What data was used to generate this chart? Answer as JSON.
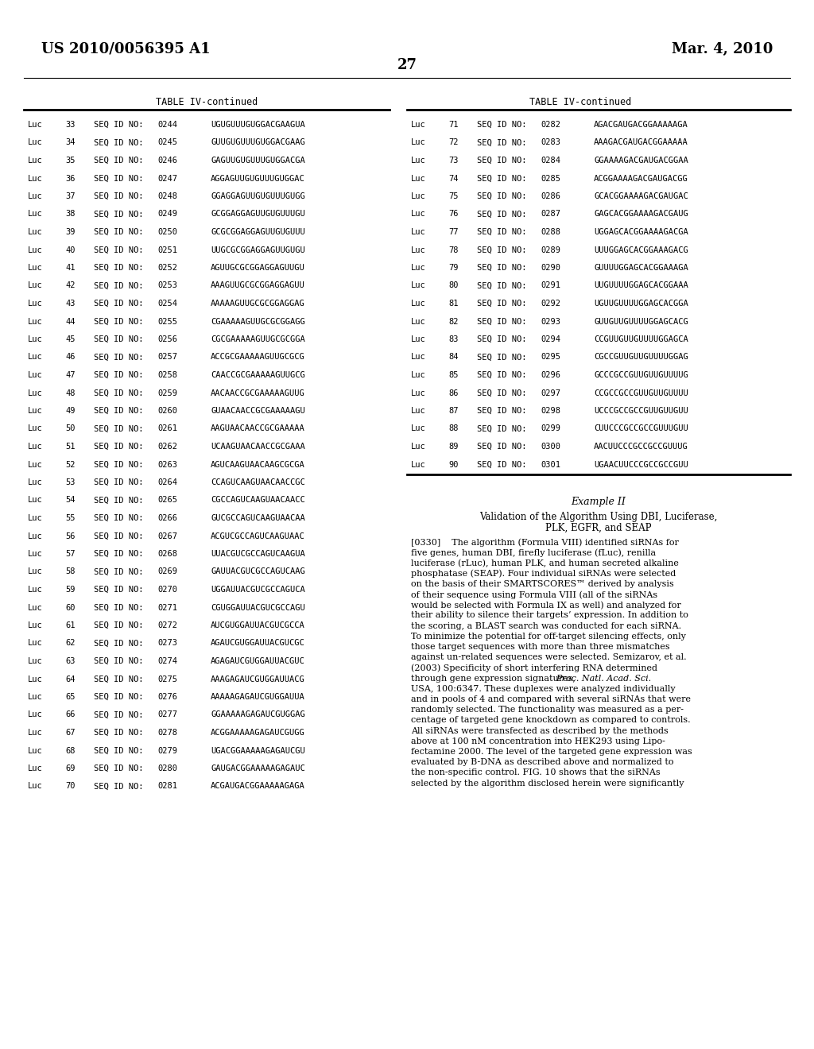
{
  "page_number": "27",
  "patent_left": "US 2010/0056395 A1",
  "patent_right": "Mar. 4, 2010",
  "table_title": "TABLE IV-continued",
  "left_table": {
    "rows": [
      [
        "Luc",
        "33",
        "SEQ ID NO:",
        "0244",
        "UGUGUUUGUGGACGAAGUA"
      ],
      [
        "Luc",
        "34",
        "SEQ ID NO:",
        "0245",
        "GUUGUGUUUGUGGACGAAG"
      ],
      [
        "Luc",
        "35",
        "SEQ ID NO:",
        "0246",
        "GAGUUGUGUUUGUGGACGA"
      ],
      [
        "Luc",
        "36",
        "SEQ ID NO:",
        "0247",
        "AGGAGUUGUGUUUGUGGAC"
      ],
      [
        "Luc",
        "37",
        "SEQ ID NO:",
        "0248",
        "GGAGGAGUUGUGUUUGUGG"
      ],
      [
        "Luc",
        "38",
        "SEQ ID NO:",
        "0249",
        "GCGGAGGAGUUGUGUUUGU"
      ],
      [
        "Luc",
        "39",
        "SEQ ID NO:",
        "0250",
        "GCGCGGAGGAGUUGUGUUU"
      ],
      [
        "Luc",
        "40",
        "SEQ ID NO:",
        "0251",
        "UUGCGCGGAGGAGUUGUGU"
      ],
      [
        "Luc",
        "41",
        "SEQ ID NO:",
        "0252",
        "AGUUGCGCGGAGGAGUUGU"
      ],
      [
        "Luc",
        "42",
        "SEQ ID NO:",
        "0253",
        "AAAGUUGCGCGGAGGAGUU"
      ],
      [
        "Luc",
        "43",
        "SEQ ID NO:",
        "0254",
        "AAAAAGUUGCGCGGAGGAG"
      ],
      [
        "Luc",
        "44",
        "SEQ ID NO:",
        "0255",
        "CGAAAAAGUUGCGCGGAGG"
      ],
      [
        "Luc",
        "45",
        "SEQ ID NO:",
        "0256",
        "CGCGAAAAAGUUGCGCGGA"
      ],
      [
        "Luc",
        "46",
        "SEQ ID NO:",
        "0257",
        "ACCGCGAAAAAGUUGCGCG"
      ],
      [
        "Luc",
        "47",
        "SEQ ID NO:",
        "0258",
        "CAACCGCGAAAAAGUUGCG"
      ],
      [
        "Luc",
        "48",
        "SEQ ID NO:",
        "0259",
        "AACAACCGCGAAAAAGUUG"
      ],
      [
        "Luc",
        "49",
        "SEQ ID NO:",
        "0260",
        "GUAACAACCGCGAAAAAGU"
      ],
      [
        "Luc",
        "50",
        "SEQ ID NO:",
        "0261",
        "AAGUAACAACCGCGAAAAA"
      ],
      [
        "Luc",
        "51",
        "SEQ ID NO:",
        "0262",
        "UCAAGUAACAACCGCGAAA"
      ],
      [
        "Luc",
        "52",
        "SEQ ID NO:",
        "0263",
        "AGUCAAGUAACAAGCGCGA"
      ],
      [
        "Luc",
        "53",
        "SEQ ID NO:",
        "0264",
        "CCAGUCAAGUAACAACCGC"
      ],
      [
        "Luc",
        "54",
        "SEQ ID NO:",
        "0265",
        "CGCCAGUCAAGUAACAACC"
      ],
      [
        "Luc",
        "55",
        "SEQ ID NO:",
        "0266",
        "GUCGCCAGUCAAGUAACAA"
      ],
      [
        "Luc",
        "56",
        "SEQ ID NO:",
        "0267",
        "ACGUCGCCAGUCAAGUAAC"
      ],
      [
        "Luc",
        "57",
        "SEQ ID NO:",
        "0268",
        "UUACGUCGCCAGUCAAGUA"
      ],
      [
        "Luc",
        "58",
        "SEQ ID NO:",
        "0269",
        "GAUUACGUCGCCAGUCAAG"
      ],
      [
        "Luc",
        "59",
        "SEQ ID NO:",
        "0270",
        "UGGAUUACGUCGCCAGUCA"
      ],
      [
        "Luc",
        "60",
        "SEQ ID NO:",
        "0271",
        "CGUGGAUUACGUCGCCAGU"
      ],
      [
        "Luc",
        "61",
        "SEQ ID NO:",
        "0272",
        "AUCGUGGAUUACGUCGCCA"
      ],
      [
        "Luc",
        "62",
        "SEQ ID NO:",
        "0273",
        "AGAUCGUGGAUUACGUCGC"
      ],
      [
        "Luc",
        "63",
        "SEQ ID NO:",
        "0274",
        "AGAGAUCGUGGAUUACGUC"
      ],
      [
        "Luc",
        "64",
        "SEQ ID NO:",
        "0275",
        "AAAGAGAUCGUGGAUUACG"
      ],
      [
        "Luc",
        "65",
        "SEQ ID NO:",
        "0276",
        "AAAAAGAGAUCGUGGAUUA"
      ],
      [
        "Luc",
        "66",
        "SEQ ID NO:",
        "0277",
        "GGAAAAAGAGAUCGUGGAG"
      ],
      [
        "Luc",
        "67",
        "SEQ ID NO:",
        "0278",
        "ACGGAAAAAGAGAUCGUGG"
      ],
      [
        "Luc",
        "68",
        "SEQ ID NO:",
        "0279",
        "UGACGGAAAAAGAGAUCGU"
      ],
      [
        "Luc",
        "69",
        "SEQ ID NO:",
        "0280",
        "GAUGACGGAAAAAGAGAUC"
      ],
      [
        "Luc",
        "70",
        "SEQ ID NO:",
        "0281",
        "ACGAUGACGGAAAAAGAGA"
      ]
    ]
  },
  "right_table": {
    "rows": [
      [
        "Luc",
        "71",
        "SEQ ID NO:",
        "0282",
        "AGACGAUGACGGAAAAAGA"
      ],
      [
        "Luc",
        "72",
        "SEQ ID NO:",
        "0283",
        "AAAGACGAUGACGGAAAAA"
      ],
      [
        "Luc",
        "73",
        "SEQ ID NO:",
        "0284",
        "GGAAAAGACGAUGACGGAA"
      ],
      [
        "Luc",
        "74",
        "SEQ ID NO:",
        "0285",
        "ACGGAAAAGACGAUGACGG"
      ],
      [
        "Luc",
        "75",
        "SEQ ID NO:",
        "0286",
        "GCACGGAAAAGACGAUGAC"
      ],
      [
        "Luc",
        "76",
        "SEQ ID NO:",
        "0287",
        "GAGCACGGAAAAGACGAUG"
      ],
      [
        "Luc",
        "77",
        "SEQ ID NO:",
        "0288",
        "UGGAGCACGGAAAAGACGA"
      ],
      [
        "Luc",
        "78",
        "SEQ ID NO:",
        "0289",
        "UUUGGAGCACGGAAAGACG"
      ],
      [
        "Luc",
        "79",
        "SEQ ID NO:",
        "0290",
        "GUUUUGGAGCACGGAAAGA"
      ],
      [
        "Luc",
        "80",
        "SEQ ID NO:",
        "0291",
        "UUGUUUUGGAGCACGGAAA"
      ],
      [
        "Luc",
        "81",
        "SEQ ID NO:",
        "0292",
        "UGUUGUUUUGGAGCACGGA"
      ],
      [
        "Luc",
        "82",
        "SEQ ID NO:",
        "0293",
        "GUUGUUGUUUUGGAGCACG"
      ],
      [
        "Luc",
        "83",
        "SEQ ID NO:",
        "0294",
        "CCGUUGUUGUUUUGGAGCA"
      ],
      [
        "Luc",
        "84",
        "SEQ ID NO:",
        "0295",
        "CGCCGUUGUUGUUUUGGAG"
      ],
      [
        "Luc",
        "85",
        "SEQ ID NO:",
        "0296",
        "GCCCGCCGUUGUUGUUUUG"
      ],
      [
        "Luc",
        "86",
        "SEQ ID NO:",
        "0297",
        "CCGCCGCCGUUGUUGUUUU"
      ],
      [
        "Luc",
        "87",
        "SEQ ID NO:",
        "0298",
        "UCCCGCCGCCGUUGUUGUU"
      ],
      [
        "Luc",
        "88",
        "SEQ ID NO:",
        "0299",
        "CUUCCCGCCGCCGUUUGUU"
      ],
      [
        "Luc",
        "89",
        "SEQ ID NO:",
        "0300",
        "AACUUCCCGCCGCCGUUUG"
      ],
      [
        "Luc",
        "90",
        "SEQ ID NO:",
        "0301",
        "UGAACUUCCCGCCGCCGUU"
      ]
    ]
  },
  "example_title": "Example II",
  "example_body_lines": [
    "[0330]    The algorithm (Formula VIII) identified siRNAs for",
    "five genes, human DBI, firefly luciferase (fLuc), renilla",
    "luciferase (rLuc), human PLK, and human secreted alkaline",
    "phosphatase (SEAP). Four individual siRNAs were selected",
    "on the basis of their SMARTSCORES™ derived by analysis",
    "of their sequence using Formula VIII (all of the siRNAs",
    "would be selected with Formula IX as well) and analyzed for",
    "their ability to silence their targets’ expression. In addition to",
    "the scoring, a BLAST search was conducted for each siRNA.",
    "To minimize the potential for off-target silencing effects, only",
    "those target sequences with more than three mismatches",
    "against un-related sequences were selected. Semizarov, et al.",
    "(2003) Specificity of short interfering RNA determined",
    "through gene expression signatures, Proc. Natl. Acad. Sci.",
    "USA, 100:6347. These duplexes were analyzed individually",
    "and in pools of 4 and compared with several siRNAs that were",
    "randomly selected. The functionality was measured as a per-",
    "centage of targeted gene knockdown as compared to controls.",
    "All siRNAs were transfected as described by the methods",
    "above at 100 nM concentration into HEK293 using Lipo-",
    "fectamine 2000. The level of the targeted gene expression was",
    "evaluated by B-DNA as described above and normalized to",
    "the non-specific control. FIG. 10 shows that the siRNAs",
    "selected by the algorithm disclosed herein were significantly"
  ]
}
